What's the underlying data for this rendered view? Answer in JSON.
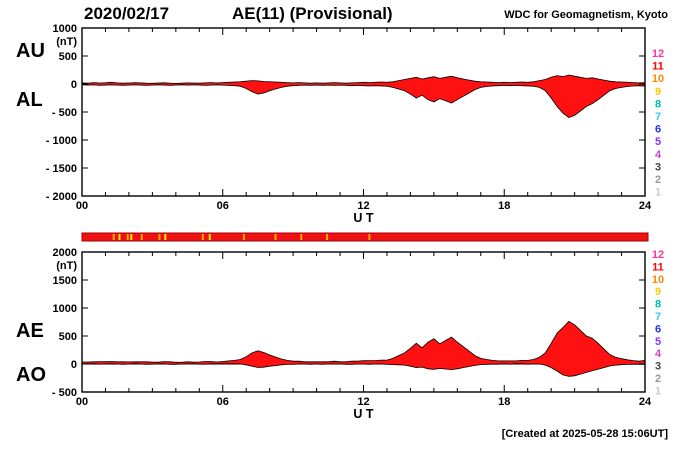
{
  "header": {
    "date": "2020/02/17",
    "title": "AE(11) (Provisional)",
    "credit": "WDC for Geomagnetism, Kyoto"
  },
  "footer": {
    "created": "[Created at 2025-05-28 15:06UT]"
  },
  "stations": {
    "labels": [
      "12",
      "11",
      "10",
      "9",
      "8",
      "7",
      "6",
      "5",
      "4",
      "3",
      "2",
      "1"
    ],
    "colors": [
      "#ff3399",
      "#ff0000",
      "#ff8800",
      "#ffcc00",
      "#00bbaa",
      "#33ccff",
      "#2233ee",
      "#8833ff",
      "#cc44cc",
      "#444444",
      "#999999",
      "#cccccc"
    ]
  },
  "status_bar": {
    "fill": "#ee1111",
    "border": "#aa0000",
    "ticks": [
      {
        "h": 1.35,
        "color": "#ffaa00"
      },
      {
        "h": 1.6,
        "color": "#ffee00"
      },
      {
        "h": 1.95,
        "color": "#ffaa00"
      },
      {
        "h": 2.1,
        "color": "#ffee00"
      },
      {
        "h": 2.55,
        "color": "#ffaa00"
      },
      {
        "h": 3.3,
        "color": "#ffaa00"
      },
      {
        "h": 3.55,
        "color": "#ffee00"
      },
      {
        "h": 5.15,
        "color": "#ffaa00"
      },
      {
        "h": 5.45,
        "color": "#ffee00"
      },
      {
        "h": 6.9,
        "color": "#ffaa00"
      },
      {
        "h": 8.25,
        "color": "#ffaa00"
      },
      {
        "h": 9.35,
        "color": "#ffaa00"
      },
      {
        "h": 10.45,
        "color": "#ffaa00"
      },
      {
        "h": 12.25,
        "color": "#ffaa00"
      }
    ]
  },
  "chart_data": [
    {
      "type": "area",
      "panel": "AU-AL",
      "left_labels": [
        "AU",
        "AL"
      ],
      "unit": "(nT)",
      "ylim": [
        -2000,
        1000
      ],
      "ytick_values": [
        1000,
        500,
        0,
        -500,
        -1000,
        -1500,
        -2000
      ],
      "ytick_labels": [
        "1000",
        "500",
        "0",
        "- 500",
        "- 1000",
        "- 1500",
        "- 2000"
      ],
      "xtick_hours": [
        0,
        6,
        12,
        18,
        24
      ],
      "xtick_labels": [
        "00",
        "06",
        "12",
        "18",
        "24"
      ],
      "xlabel": "U T",
      "x_start": 0,
      "x_step": 0.25,
      "fill_color": "#ff1111",
      "series": [
        {
          "name": "AU",
          "values": [
            20,
            15,
            25,
            18,
            22,
            30,
            20,
            15,
            18,
            25,
            20,
            15,
            12,
            18,
            22,
            15,
            10,
            15,
            20,
            18,
            15,
            20,
            25,
            20,
            25,
            30,
            35,
            40,
            50,
            60,
            55,
            45,
            40,
            35,
            30,
            25,
            20,
            25,
            20,
            15,
            20,
            15,
            20,
            25,
            20,
            15,
            20,
            25,
            30,
            25,
            30,
            35,
            30,
            40,
            60,
            80,
            100,
            120,
            90,
            110,
            130,
            100,
            120,
            140,
            110,
            90,
            70,
            50,
            40,
            35,
            30,
            25,
            30,
            25,
            30,
            35,
            30,
            40,
            60,
            80,
            120,
            150,
            130,
            160,
            140,
            120,
            100,
            110,
            90,
            70,
            50,
            40,
            35,
            30,
            25,
            20,
            25
          ]
        },
        {
          "name": "AL",
          "values": [
            -15,
            -20,
            -15,
            -25,
            -20,
            -15,
            -20,
            -25,
            -20,
            -15,
            -20,
            -25,
            -20,
            -15,
            -20,
            -25,
            -20,
            -15,
            -20,
            -15,
            -20,
            -25,
            -20,
            -15,
            -20,
            -25,
            -30,
            -40,
            -80,
            -140,
            -180,
            -160,
            -120,
            -90,
            -60,
            -40,
            -30,
            -25,
            -20,
            -25,
            -20,
            -25,
            -20,
            -25,
            -20,
            -25,
            -30,
            -25,
            -30,
            -35,
            -30,
            -35,
            -40,
            -60,
            -90,
            -120,
            -180,
            -250,
            -200,
            -280,
            -320,
            -260,
            -300,
            -340,
            -280,
            -220,
            -160,
            -100,
            -60,
            -45,
            -35,
            -30,
            -25,
            -30,
            -25,
            -30,
            -35,
            -40,
            -60,
            -120,
            -250,
            -400,
            -520,
            -600,
            -560,
            -480,
            -400,
            -350,
            -280,
            -200,
            -120,
            -80,
            -60,
            -45,
            -35,
            -30,
            -40
          ]
        }
      ]
    },
    {
      "type": "area",
      "panel": "AE-AO",
      "left_labels": [
        "AE",
        "AO"
      ],
      "unit": "(nT)",
      "ylim": [
        -500,
        2000
      ],
      "ytick_values": [
        2000,
        1500,
        1000,
        500,
        0,
        -500
      ],
      "ytick_labels": [
        "2000",
        "1500",
        "1000",
        "500",
        "0",
        "- 500"
      ],
      "xtick_hours": [
        0,
        6,
        12,
        18,
        24
      ],
      "xtick_labels": [
        "00",
        "06",
        "12",
        "18",
        "24"
      ],
      "xlabel": "U T",
      "x_start": 0,
      "x_step": 0.25,
      "fill_color": "#ff1111",
      "series": [
        {
          "name": "AE",
          "values": [
            35,
            35,
            40,
            43,
            42,
            45,
            40,
            40,
            38,
            40,
            40,
            40,
            32,
            33,
            42,
            40,
            30,
            30,
            40,
            33,
            35,
            45,
            45,
            35,
            45,
            55,
            65,
            80,
            130,
            200,
            235,
            205,
            160,
            125,
            90,
            65,
            50,
            50,
            40,
            40,
            40,
            40,
            40,
            50,
            40,
            40,
            50,
            50,
            60,
            60,
            60,
            70,
            70,
            100,
            150,
            200,
            280,
            370,
            290,
            390,
            450,
            360,
            420,
            480,
            390,
            310,
            230,
            150,
            100,
            80,
            65,
            55,
            55,
            55,
            55,
            65,
            65,
            80,
            120,
            200,
            370,
            550,
            650,
            760,
            700,
            600,
            500,
            460,
            370,
            270,
            170,
            120,
            95,
            75,
            60,
            50,
            65
          ]
        },
        {
          "name": "AO",
          "values": [
            2,
            -3,
            5,
            -4,
            1,
            8,
            0,
            -5,
            -1,
            5,
            0,
            -5,
            -4,
            2,
            1,
            -5,
            -5,
            0,
            0,
            2,
            -3,
            -3,
            3,
            3,
            3,
            3,
            3,
            0,
            -15,
            -40,
            -63,
            -58,
            -40,
            -28,
            -15,
            -8,
            -5,
            0,
            0,
            -5,
            0,
            -5,
            0,
            0,
            0,
            -5,
            -5,
            0,
            0,
            -5,
            0,
            0,
            -5,
            -10,
            -15,
            -20,
            -40,
            -65,
            -55,
            -85,
            -95,
            -80,
            -90,
            -100,
            -85,
            -65,
            -45,
            -25,
            -10,
            -5,
            -3,
            -3,
            3,
            -3,
            3,
            3,
            -3,
            0,
            0,
            -20,
            -65,
            -125,
            -195,
            -220,
            -210,
            -180,
            -150,
            -120,
            -95,
            -65,
            -35,
            -20,
            -13,
            -8,
            -5,
            -5,
            -8
          ]
        }
      ]
    }
  ]
}
